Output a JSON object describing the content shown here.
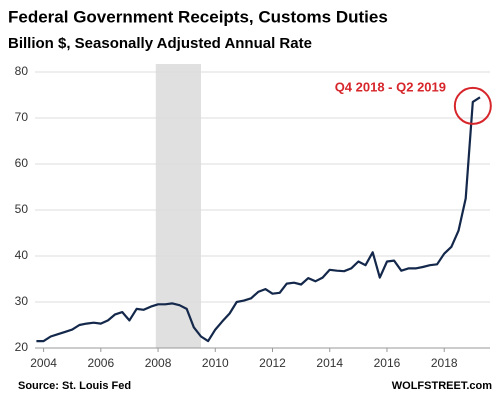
{
  "chart_data": {
    "type": "line",
    "title": "Federal Government Receipts, Customs Duties",
    "subtitle": "Billion $, Seasonally Adjusted Annual Rate",
    "annotation": "Q4 2018 - Q2 2019",
    "source": "Source: St. Louis Fed",
    "credit": "WOLFSTREET.com",
    "x": [
      2003.75,
      2004,
      2004.25,
      2004.5,
      2004.75,
      2005,
      2005.25,
      2005.5,
      2005.75,
      2006,
      2006.25,
      2006.5,
      2006.75,
      2007,
      2007.25,
      2007.5,
      2007.75,
      2008,
      2008.25,
      2008.5,
      2008.75,
      2009,
      2009.25,
      2009.5,
      2009.75,
      2010,
      2010.25,
      2010.5,
      2010.75,
      2011,
      2011.25,
      2011.5,
      2011.75,
      2012,
      2012.25,
      2012.5,
      2012.75,
      2013,
      2013.25,
      2013.5,
      2013.75,
      2014,
      2014.25,
      2014.5,
      2014.75,
      2015,
      2015.25,
      2015.5,
      2015.75,
      2016,
      2016.25,
      2016.5,
      2016.75,
      2017,
      2017.25,
      2017.5,
      2017.75,
      2018,
      2018.25,
      2018.5,
      2018.75,
      2019,
      2019.25
    ],
    "series": [
      {
        "name": "Customs Duties",
        "color": "#14284b",
        "values": [
          21.5,
          21.5,
          22.5,
          23,
          23.5,
          24,
          25,
          25.3,
          25.5,
          25.3,
          26,
          27.3,
          27.8,
          26,
          28.5,
          28.3,
          29,
          29.5,
          29.5,
          29.7,
          29.3,
          28.5,
          24.5,
          22.5,
          21.5,
          24,
          25.8,
          27.5,
          30,
          30.3,
          30.8,
          32.2,
          32.8,
          31.8,
          32,
          34,
          34.2,
          33.8,
          35.2,
          34.5,
          35.3,
          37,
          36.8,
          36.7,
          37.3,
          38.8,
          38,
          40.8,
          35.3,
          38.8,
          39,
          36.8,
          37.3,
          37.3,
          37.6,
          38,
          38.2,
          40.5,
          42,
          45.5,
          52.5,
          73.5,
          74.5
        ]
      }
    ],
    "recession": [
      2007.92,
      2009.5
    ],
    "xlim": [
      2003.7,
      2019.6
    ],
    "xticks": [
      2004,
      2006,
      2008,
      2010,
      2012,
      2014,
      2016,
      2018
    ],
    "ylim": [
      20,
      80
    ],
    "yticks": [
      20,
      30,
      40,
      50,
      60,
      70,
      80
    ],
    "grid": true
  }
}
